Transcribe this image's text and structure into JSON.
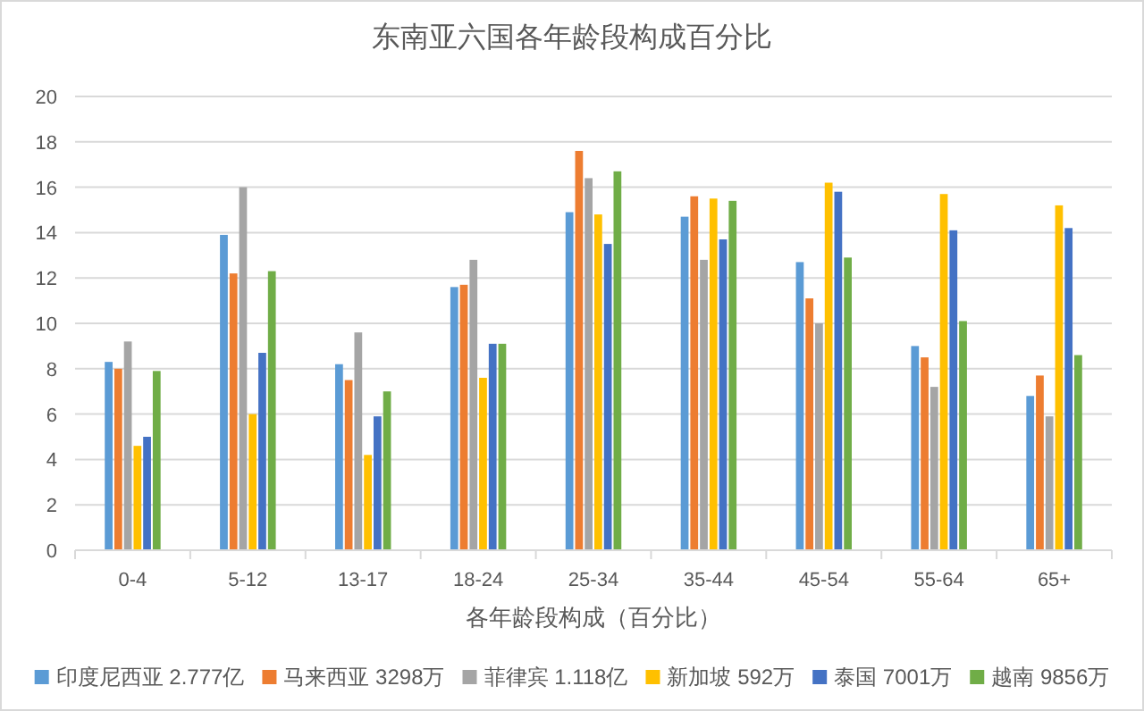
{
  "chart_data": {
    "type": "bar",
    "title": "东南亚六国各年龄段构成百分比",
    "xlabel": "各年龄段构成（百分比）",
    "categories": [
      "0-4",
      "5-12",
      "13-17",
      "18-24",
      "25-34",
      "35-44",
      "45-54",
      "55-64",
      "65+"
    ],
    "series": [
      {
        "name": "印度尼西亚 2.777亿",
        "color": "#5b9bd5",
        "values": [
          8.3,
          13.9,
          8.2,
          11.6,
          14.9,
          14.7,
          12.7,
          9.0,
          6.8
        ]
      },
      {
        "name": "马来西亚 3298万",
        "color": "#ed7d31",
        "values": [
          8.0,
          12.2,
          7.5,
          11.7,
          17.6,
          15.6,
          11.1,
          8.5,
          7.7
        ]
      },
      {
        "name": "菲律宾 1.118亿",
        "color": "#a5a5a5",
        "values": [
          9.2,
          16.0,
          9.6,
          12.8,
          16.4,
          12.8,
          10.0,
          7.2,
          5.9
        ]
      },
      {
        "name": "新加坡 592万",
        "color": "#ffc000",
        "values": [
          4.6,
          6.0,
          4.2,
          7.6,
          14.8,
          15.5,
          16.2,
          15.7,
          15.2
        ]
      },
      {
        "name": "泰国 7001万",
        "color": "#4472c4",
        "values": [
          5.0,
          8.7,
          5.9,
          9.1,
          13.5,
          13.7,
          15.8,
          14.1,
          14.2
        ]
      },
      {
        "name": "越南 9856万",
        "color": "#70ad47",
        "values": [
          7.9,
          12.3,
          7.0,
          9.1,
          16.7,
          15.4,
          12.9,
          10.1,
          8.6
        ]
      }
    ],
    "ylim": [
      0,
      20
    ],
    "yticks": [
      0,
      2,
      4,
      6,
      8,
      10,
      12,
      14,
      16,
      18,
      20
    ],
    "grid": "y",
    "legend": "bottom"
  }
}
